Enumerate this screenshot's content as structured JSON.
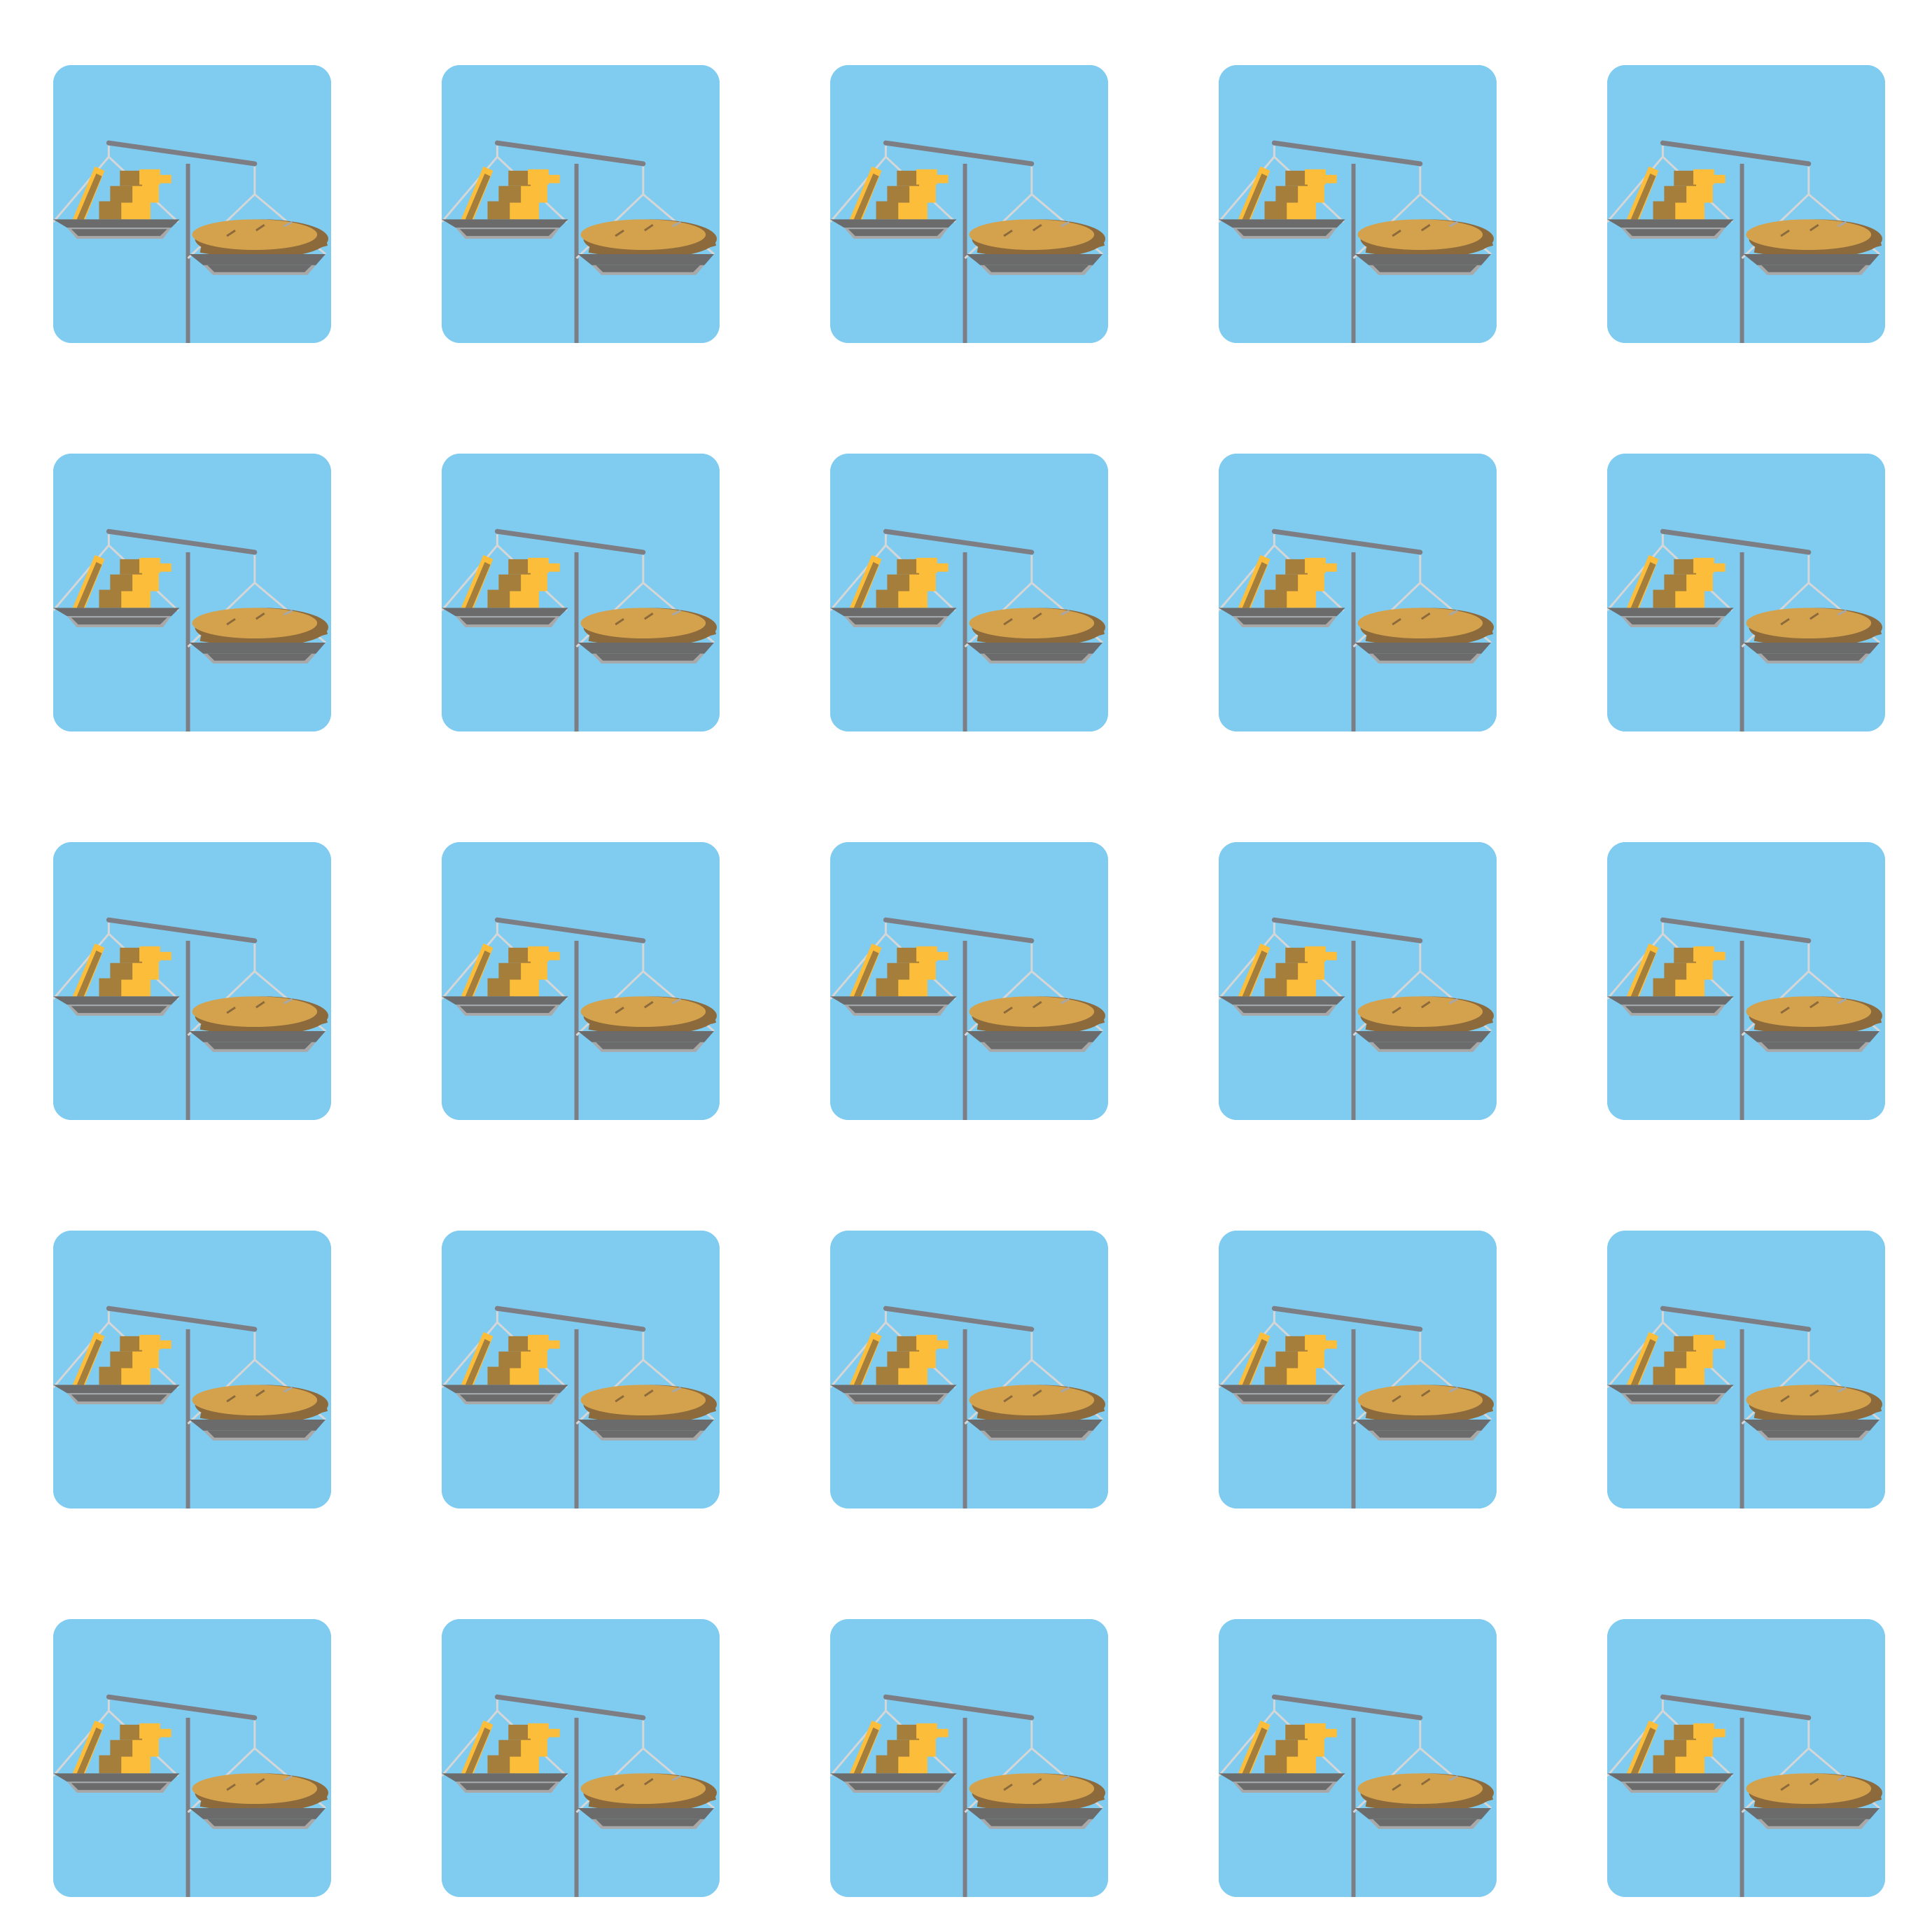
{
  "colors": {
    "page_background": "#ffffff",
    "tile_background": "#80ccf1",
    "scale_post": "#7d7d84",
    "scale_beam": "#7d7d84",
    "suspension_wire": "#d6d6d6",
    "pan_top": "#6b6b6b",
    "pan_edge": "#a8a8a8",
    "gold_bar": "#fbbd3a",
    "gold_bar_dark": "#a57e3c",
    "bread_light": "#d4a24c",
    "bread_dark": "#8c6a3c"
  },
  "grid": {
    "rows": 5,
    "columns": 5
  },
  "tiles": [
    {
      "icon": "balance-scale-gold-vs-bread-icon"
    },
    {
      "icon": "balance-scale-gold-vs-bread-icon"
    },
    {
      "icon": "balance-scale-gold-vs-bread-icon"
    },
    {
      "icon": "balance-scale-gold-vs-bread-icon"
    },
    {
      "icon": "balance-scale-gold-vs-bread-icon"
    },
    {
      "icon": "balance-scale-gold-vs-bread-icon"
    },
    {
      "icon": "balance-scale-gold-vs-bread-icon"
    },
    {
      "icon": "balance-scale-gold-vs-bread-icon"
    },
    {
      "icon": "balance-scale-gold-vs-bread-icon"
    },
    {
      "icon": "balance-scale-gold-vs-bread-icon"
    },
    {
      "icon": "balance-scale-gold-vs-bread-icon"
    },
    {
      "icon": "balance-scale-gold-vs-bread-icon"
    },
    {
      "icon": "balance-scale-gold-vs-bread-icon"
    },
    {
      "icon": "balance-scale-gold-vs-bread-icon"
    },
    {
      "icon": "balance-scale-gold-vs-bread-icon"
    },
    {
      "icon": "balance-scale-gold-vs-bread-icon"
    },
    {
      "icon": "balance-scale-gold-vs-bread-icon"
    },
    {
      "icon": "balance-scale-gold-vs-bread-icon"
    },
    {
      "icon": "balance-scale-gold-vs-bread-icon"
    },
    {
      "icon": "balance-scale-gold-vs-bread-icon"
    },
    {
      "icon": "balance-scale-gold-vs-bread-icon"
    },
    {
      "icon": "balance-scale-gold-vs-bread-icon"
    },
    {
      "icon": "balance-scale-gold-vs-bread-icon"
    },
    {
      "icon": "balance-scale-gold-vs-bread-icon"
    },
    {
      "icon": "balance-scale-gold-vs-bread-icon"
    }
  ]
}
